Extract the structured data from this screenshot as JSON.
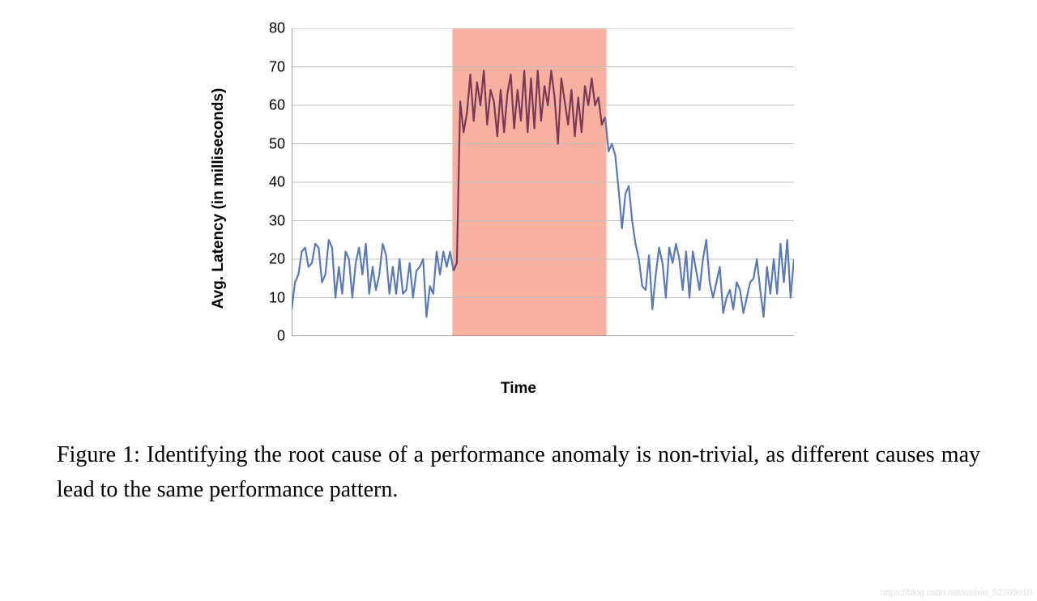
{
  "chart": {
    "type": "line",
    "ylabel": "Avg. Latency (in milliseconds)",
    "xlabel": "Time",
    "label_fontsize": 19,
    "label_fontweight": 700,
    "tick_fontsize": 18,
    "ylim": [
      0,
      80
    ],
    "ytick_step": 10,
    "yticks": [
      0,
      10,
      20,
      30,
      40,
      50,
      60,
      70,
      80
    ],
    "xlim": [
      0,
      150
    ],
    "background_color": "#ffffff",
    "grid_color": "#bfbfbf",
    "grid_width": 1,
    "axis_color": "#808080",
    "axis_width": 1.5,
    "line_color": "#5b7ab5",
    "line_color_in_band": "#7a3a55",
    "line_width": 2.2,
    "highlight_band": {
      "x_start": 48,
      "x_end": 94,
      "fill": "#f7a28f",
      "opacity": 0.85
    },
    "values": [
      7,
      14,
      16,
      22,
      23,
      18,
      19,
      24,
      23,
      14,
      16,
      25,
      23,
      10,
      18,
      11,
      22,
      20,
      10,
      19,
      23,
      16,
      24,
      11,
      18,
      12,
      16,
      24,
      21,
      11,
      18,
      11,
      20,
      11,
      12,
      19,
      10,
      17,
      18,
      20,
      5,
      13,
      11,
      22,
      16,
      22,
      18,
      22,
      17,
      19,
      61,
      53,
      58,
      68,
      56,
      66,
      60,
      69,
      55,
      64,
      61,
      52,
      64,
      53,
      63,
      68,
      54,
      64,
      56,
      69,
      53,
      67,
      54,
      69,
      56,
      65,
      60,
      69,
      62,
      50,
      67,
      61,
      55,
      64,
      52,
      62,
      53,
      65,
      60,
      67,
      60,
      62,
      55,
      57,
      48,
      50,
      47,
      38,
      28,
      37,
      39,
      30,
      24,
      20,
      13,
      12,
      21,
      7,
      16,
      23,
      19,
      10,
      23,
      19,
      24,
      20,
      12,
      22,
      10,
      22,
      17,
      12,
      20,
      25,
      14,
      10,
      14,
      18,
      6,
      10,
      12,
      7,
      14,
      12,
      6,
      10,
      14,
      15,
      20,
      12,
      5,
      18,
      11,
      20,
      11,
      24,
      14,
      25,
      10,
      20
    ]
  },
  "caption": "Figure 1: Identifying the root cause of a performance anomaly is non-trivial, as different causes may lead to the same performance pattern.",
  "caption_fontsize": 28,
  "watermark": "https://blog.csdn.net/weixin_52705010"
}
